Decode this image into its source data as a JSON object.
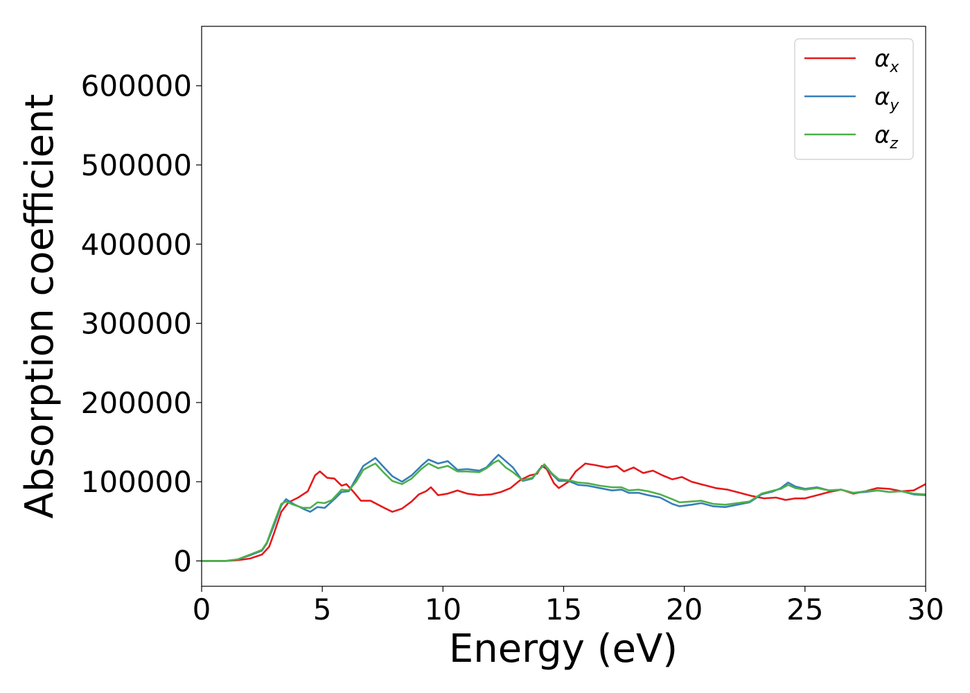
{
  "chart_data": {
    "type": "line",
    "xlabel": "Energy (eV)",
    "ylabel": "Absorption coefficient",
    "xlim": [
      0,
      30
    ],
    "ylim": [
      -32000,
      675000
    ],
    "xticks": [
      0,
      5,
      10,
      15,
      20,
      25,
      30
    ],
    "xtick_labels": [
      "0",
      "5",
      "10",
      "15",
      "20",
      "25",
      "30"
    ],
    "yticks": [
      0,
      100000,
      200000,
      300000,
      400000,
      500000,
      600000
    ],
    "ytick_labels": [
      "0",
      "100000",
      "200000",
      "300000",
      "400000",
      "500000",
      "600000"
    ],
    "grid": false,
    "legend_position": "top-right",
    "series": [
      {
        "name": "α_x",
        "legend_symbol": "α",
        "legend_subscript": "x",
        "color": "#e41a1c",
        "points": [
          [
            0,
            0
          ],
          [
            1,
            0
          ],
          [
            1.5,
            1000
          ],
          [
            2,
            3000
          ],
          [
            2.5,
            8000
          ],
          [
            2.8,
            18000
          ],
          [
            3.0,
            35000
          ],
          [
            3.3,
            62000
          ],
          [
            3.6,
            74000
          ],
          [
            4.0,
            80000
          ],
          [
            4.4,
            88000
          ],
          [
            4.7,
            108000
          ],
          [
            4.9,
            113000
          ],
          [
            5.2,
            105000
          ],
          [
            5.5,
            104000
          ],
          [
            5.8,
            95000
          ],
          [
            6.0,
            97000
          ],
          [
            6.3,
            87000
          ],
          [
            6.6,
            76000
          ],
          [
            7.0,
            76000
          ],
          [
            7.5,
            68000
          ],
          [
            7.9,
            62000
          ],
          [
            8.3,
            66000
          ],
          [
            8.7,
            75000
          ],
          [
            9.0,
            84000
          ],
          [
            9.3,
            88000
          ],
          [
            9.5,
            93000
          ],
          [
            9.8,
            83000
          ],
          [
            10.2,
            85000
          ],
          [
            10.6,
            89000
          ],
          [
            11.0,
            85000
          ],
          [
            11.5,
            83000
          ],
          [
            12.0,
            84000
          ],
          [
            12.4,
            87000
          ],
          [
            12.8,
            92000
          ],
          [
            13.2,
            102000
          ],
          [
            13.6,
            108000
          ],
          [
            13.9,
            110000
          ],
          [
            14.1,
            120000
          ],
          [
            14.3,
            116000
          ],
          [
            14.6,
            98000
          ],
          [
            14.8,
            92000
          ],
          [
            15.2,
            100000
          ],
          [
            15.5,
            113000
          ],
          [
            15.9,
            123000
          ],
          [
            16.3,
            121000
          ],
          [
            16.8,
            118000
          ],
          [
            17.2,
            120000
          ],
          [
            17.5,
            113000
          ],
          [
            17.9,
            118000
          ],
          [
            18.3,
            111000
          ],
          [
            18.7,
            114000
          ],
          [
            19.1,
            108000
          ],
          [
            19.5,
            103000
          ],
          [
            19.9,
            106000
          ],
          [
            20.3,
            100000
          ],
          [
            20.8,
            96000
          ],
          [
            21.3,
            92000
          ],
          [
            21.8,
            90000
          ],
          [
            22.3,
            86000
          ],
          [
            22.8,
            82000
          ],
          [
            23.3,
            79000
          ],
          [
            23.8,
            80000
          ],
          [
            24.2,
            77000
          ],
          [
            24.6,
            79000
          ],
          [
            25.0,
            79000
          ],
          [
            25.5,
            83000
          ],
          [
            26.0,
            87000
          ],
          [
            26.5,
            90000
          ],
          [
            27.0,
            85000
          ],
          [
            27.5,
            88000
          ],
          [
            28.0,
            92000
          ],
          [
            28.5,
            91000
          ],
          [
            29.0,
            88000
          ],
          [
            29.5,
            89000
          ],
          [
            30.0,
            97000
          ]
        ]
      },
      {
        "name": "α_y",
        "legend_symbol": "α",
        "legend_subscript": "y",
        "color": "#377eb8",
        "points": [
          [
            0,
            0
          ],
          [
            1,
            0
          ],
          [
            1.5,
            2000
          ],
          [
            2,
            7000
          ],
          [
            2.5,
            13000
          ],
          [
            2.7,
            22000
          ],
          [
            3.0,
            45000
          ],
          [
            3.3,
            70000
          ],
          [
            3.5,
            78000
          ],
          [
            3.8,
            72000
          ],
          [
            4.2,
            66000
          ],
          [
            4.5,
            62000
          ],
          [
            4.8,
            68000
          ],
          [
            5.1,
            67000
          ],
          [
            5.5,
            78000
          ],
          [
            5.8,
            87000
          ],
          [
            6.1,
            88000
          ],
          [
            6.4,
            104000
          ],
          [
            6.7,
            120000
          ],
          [
            7.0,
            126000
          ],
          [
            7.2,
            130000
          ],
          [
            7.5,
            120000
          ],
          [
            7.9,
            107000
          ],
          [
            8.3,
            100000
          ],
          [
            8.7,
            108000
          ],
          [
            9.1,
            120000
          ],
          [
            9.4,
            128000
          ],
          [
            9.8,
            123000
          ],
          [
            10.2,
            126000
          ],
          [
            10.6,
            115000
          ],
          [
            11.0,
            116000
          ],
          [
            11.5,
            114000
          ],
          [
            11.8,
            118000
          ],
          [
            12.1,
            128000
          ],
          [
            12.3,
            134000
          ],
          [
            12.6,
            126000
          ],
          [
            12.9,
            118000
          ],
          [
            13.3,
            101000
          ],
          [
            13.7,
            104000
          ],
          [
            14.0,
            116000
          ],
          [
            14.2,
            121000
          ],
          [
            14.5,
            110000
          ],
          [
            14.8,
            101000
          ],
          [
            15.2,
            101000
          ],
          [
            15.6,
            96000
          ],
          [
            16.0,
            95000
          ],
          [
            16.5,
            92000
          ],
          [
            17.0,
            89000
          ],
          [
            17.4,
            90000
          ],
          [
            17.7,
            86000
          ],
          [
            18.1,
            86000
          ],
          [
            18.5,
            83000
          ],
          [
            19.0,
            80000
          ],
          [
            19.5,
            72000
          ],
          [
            19.8,
            69000
          ],
          [
            20.3,
            71000
          ],
          [
            20.7,
            73000
          ],
          [
            21.2,
            69000
          ],
          [
            21.7,
            68000
          ],
          [
            22.2,
            71000
          ],
          [
            22.7,
            74000
          ],
          [
            23.2,
            84000
          ],
          [
            23.7,
            88000
          ],
          [
            24.0,
            92000
          ],
          [
            24.3,
            99000
          ],
          [
            24.6,
            94000
          ],
          [
            25.0,
            91000
          ],
          [
            25.5,
            93000
          ],
          [
            26.0,
            89000
          ],
          [
            26.5,
            90000
          ],
          [
            27.0,
            86000
          ],
          [
            27.5,
            87000
          ],
          [
            28.0,
            89000
          ],
          [
            28.5,
            87000
          ],
          [
            29.0,
            88000
          ],
          [
            29.5,
            84000
          ],
          [
            30.0,
            83000
          ]
        ]
      },
      {
        "name": "α_z",
        "legend_symbol": "α",
        "legend_subscript": "z",
        "color": "#4daf4a",
        "points": [
          [
            0,
            0
          ],
          [
            1,
            0
          ],
          [
            1.5,
            2000
          ],
          [
            2,
            8000
          ],
          [
            2.5,
            14000
          ],
          [
            2.7,
            23000
          ],
          [
            3.0,
            48000
          ],
          [
            3.3,
            72000
          ],
          [
            3.5,
            75000
          ],
          [
            3.8,
            71000
          ],
          [
            4.2,
            67000
          ],
          [
            4.5,
            67000
          ],
          [
            4.8,
            74000
          ],
          [
            5.1,
            73000
          ],
          [
            5.4,
            77000
          ],
          [
            5.8,
            90000
          ],
          [
            6.1,
            89000
          ],
          [
            6.4,
            100000
          ],
          [
            6.7,
            115000
          ],
          [
            7.0,
            120000
          ],
          [
            7.2,
            123000
          ],
          [
            7.5,
            113000
          ],
          [
            7.9,
            101000
          ],
          [
            8.3,
            97000
          ],
          [
            8.7,
            104000
          ],
          [
            9.1,
            116000
          ],
          [
            9.4,
            123000
          ],
          [
            9.8,
            117000
          ],
          [
            10.2,
            120000
          ],
          [
            10.6,
            113000
          ],
          [
            11.0,
            113000
          ],
          [
            11.5,
            112000
          ],
          [
            11.8,
            117000
          ],
          [
            12.1,
            124000
          ],
          [
            12.3,
            127000
          ],
          [
            12.6,
            118000
          ],
          [
            12.9,
            112000
          ],
          [
            13.3,
            102000
          ],
          [
            13.7,
            105000
          ],
          [
            14.0,
            115000
          ],
          [
            14.2,
            122000
          ],
          [
            14.5,
            111000
          ],
          [
            14.8,
            103000
          ],
          [
            15.2,
            102000
          ],
          [
            15.6,
            99000
          ],
          [
            16.0,
            98000
          ],
          [
            16.5,
            95000
          ],
          [
            17.0,
            93000
          ],
          [
            17.4,
            93000
          ],
          [
            17.7,
            89000
          ],
          [
            18.1,
            90000
          ],
          [
            18.5,
            88000
          ],
          [
            19.0,
            84000
          ],
          [
            19.5,
            78000
          ],
          [
            19.8,
            74000
          ],
          [
            20.3,
            75000
          ],
          [
            20.7,
            76000
          ],
          [
            21.2,
            72000
          ],
          [
            21.7,
            71000
          ],
          [
            22.2,
            73000
          ],
          [
            22.7,
            75000
          ],
          [
            23.2,
            85000
          ],
          [
            23.7,
            89000
          ],
          [
            24.0,
            91000
          ],
          [
            24.3,
            96000
          ],
          [
            24.6,
            92000
          ],
          [
            25.0,
            90000
          ],
          [
            25.5,
            92000
          ],
          [
            26.0,
            89000
          ],
          [
            26.5,
            90000
          ],
          [
            27.0,
            86000
          ],
          [
            27.5,
            88000
          ],
          [
            28.0,
            89000
          ],
          [
            28.5,
            87000
          ],
          [
            29.0,
            88000
          ],
          [
            29.5,
            85000
          ],
          [
            30.0,
            84000
          ]
        ]
      }
    ]
  }
}
